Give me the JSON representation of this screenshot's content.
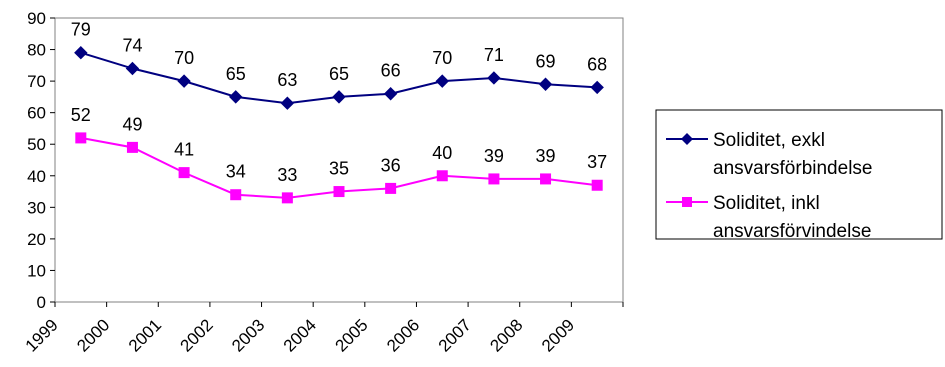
{
  "chart_data": {
    "type": "line",
    "x": [
      "1999",
      "2000",
      "2001",
      "2002",
      "2003",
      "2004",
      "2005",
      "2006",
      "2007",
      "2008",
      "2009"
    ],
    "ylim": [
      0,
      90
    ],
    "yticks": [
      0,
      10,
      20,
      30,
      40,
      50,
      60,
      70,
      80,
      90
    ],
    "grid": false,
    "legend_position": "right",
    "series": [
      {
        "name_lines": [
          "Soliditet, exkl",
          "ansvarsförbindelse"
        ],
        "values": [
          79,
          74,
          70,
          65,
          63,
          65,
          66,
          70,
          71,
          69,
          68
        ],
        "labels": [
          "79",
          "74",
          "70",
          "65",
          "63",
          "65",
          "66",
          "70",
          "71",
          "69",
          "68"
        ],
        "color": "#000080",
        "marker": "diamond"
      },
      {
        "name_lines": [
          "Soliditet, inkl",
          "ansvarsförvindelse"
        ],
        "values": [
          52,
          49,
          41,
          34,
          33,
          35,
          36,
          40,
          39,
          39,
          37
        ],
        "labels": [
          "52",
          "49",
          "41",
          "34",
          "33",
          "35",
          "36",
          "40",
          "39",
          "39",
          "37"
        ],
        "color": "#ff00ff",
        "marker": "square"
      }
    ]
  }
}
